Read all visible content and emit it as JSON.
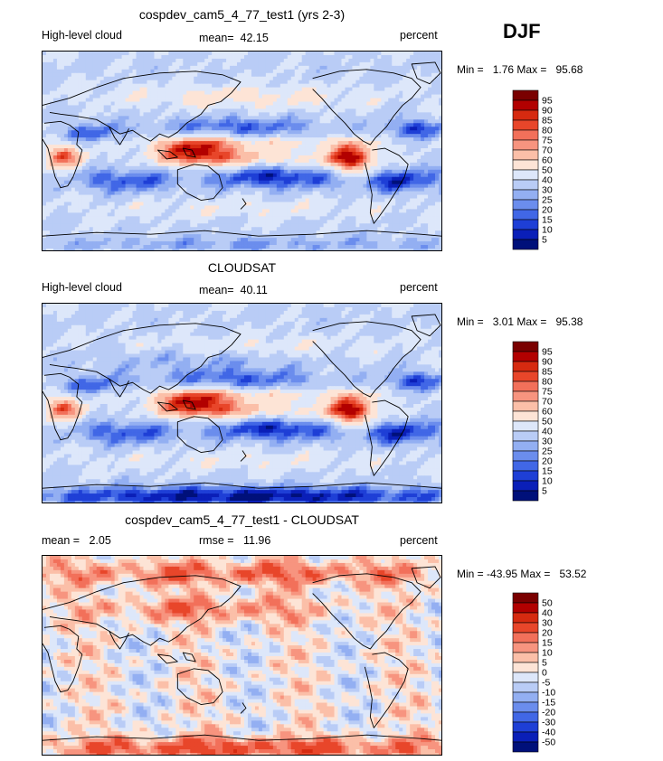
{
  "season": "DJF",
  "panels": [
    {
      "title": "cospdev_cam5_4_77_test1 (yrs 2-3)",
      "left": "High-level cloud",
      "mean_label": "mean=",
      "mean_value": "42.15",
      "unit": "percent",
      "min_label": "Min =",
      "min_value": "1.76",
      "max_label": "Max =",
      "max_value": "95.68",
      "field": "model"
    },
    {
      "title": "CLOUDSAT",
      "left": "High-level cloud",
      "mean_label": "mean=",
      "mean_value": "40.11",
      "unit": "percent",
      "min_label": "Min =",
      "min_value": "3.01",
      "max_label": "Max =",
      "max_value": "95.38",
      "field": "obs"
    },
    {
      "title": "cospdev_cam5_4_77_test1 - CLOUDSAT",
      "left_label": "mean =",
      "left_value": "2.05",
      "mid_label": "rmse =",
      "mid_value": "11.96",
      "unit": "percent",
      "min_label": "Min =",
      "min_value": "-43.95",
      "max_label": "Max =",
      "max_value": "53.52",
      "field": "diff"
    }
  ],
  "legend_abs": {
    "labels": [
      "95",
      "90",
      "85",
      "80",
      "75",
      "70",
      "60",
      "50",
      "40",
      "30",
      "25",
      "20",
      "15",
      "10",
      "5"
    ],
    "colors": [
      "#7a0000",
      "#b20000",
      "#d62a10",
      "#e8462a",
      "#f2705a",
      "#f7947f",
      "#fbbfa8",
      "#fde4d6",
      "#dde7fa",
      "#b9ccf6",
      "#93aff2",
      "#6b8ded",
      "#4167e6",
      "#1e3fd6",
      "#0a1fb8",
      "#00107a"
    ]
  },
  "legend_diff": {
    "labels": [
      "50",
      "40",
      "30",
      "20",
      "15",
      "10",
      "5",
      "0",
      "-5",
      "-10",
      "-15",
      "-20",
      "-30",
      "-40",
      "-50"
    ],
    "colors": [
      "#7a0000",
      "#b20000",
      "#d62a10",
      "#e8462a",
      "#f2705a",
      "#f7947f",
      "#fbbfa8",
      "#fde4d6",
      "#dde7fa",
      "#b9ccf6",
      "#93aff2",
      "#6b8ded",
      "#4167e6",
      "#1e3fd6",
      "#0a1fb8",
      "#00107a"
    ]
  }
}
